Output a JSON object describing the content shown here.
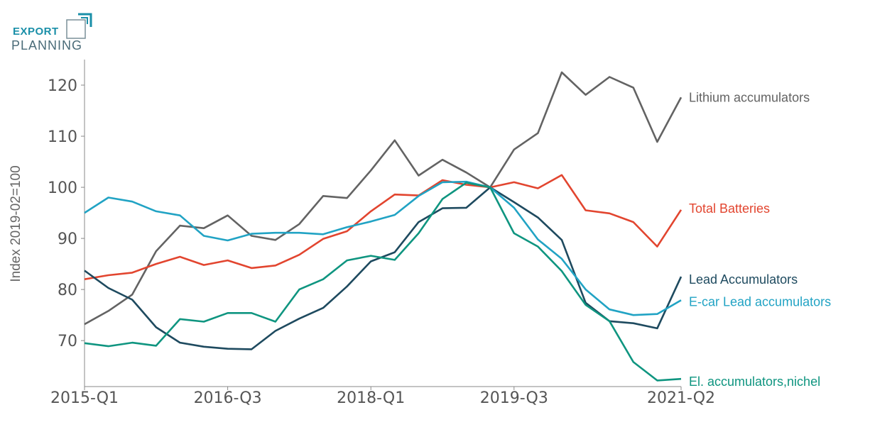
{
  "logo": {
    "line1": "EXPORT",
    "line2": "PLANNING",
    "color": "#1a8fa8"
  },
  "chart_data": {
    "type": "line",
    "title": "",
    "xlabel": "",
    "ylabel": "Index 2019-02=100",
    "ylim": [
      61,
      125
    ],
    "yticks": [
      70,
      80,
      90,
      100,
      110,
      120
    ],
    "xtick_labels": [
      {
        "index": 0,
        "label": "2015-Q1"
      },
      {
        "index": 6,
        "label": "2016-Q3"
      },
      {
        "index": 12,
        "label": "2018-Q1"
      },
      {
        "index": 18,
        "label": "2019-Q3"
      },
      {
        "index": 25,
        "label": "2021-Q2"
      }
    ],
    "n_points": 26,
    "grid": false,
    "legend": "inline-right",
    "series": [
      {
        "name": "Lithium accumulators",
        "color": "#636363",
        "values": [
          73.2,
          75.8,
          79.0,
          87.5,
          92.5,
          92.0,
          94.5,
          90.5,
          89.7,
          92.8,
          98.3,
          97.9,
          103.3,
          109.2,
          102.3,
          105.4,
          102.9,
          100.0,
          107.4,
          110.6,
          122.5,
          118.1,
          121.6,
          119.5,
          108.9,
          117.6
        ]
      },
      {
        "name": "Total Batteries",
        "color": "#e2452f",
        "values": [
          82.0,
          82.8,
          83.3,
          85.0,
          86.4,
          84.8,
          85.7,
          84.2,
          84.7,
          86.8,
          89.9,
          91.4,
          95.3,
          98.6,
          98.4,
          101.4,
          100.5,
          100.0,
          101.0,
          99.8,
          102.4,
          95.5,
          94.9,
          93.2,
          88.4,
          95.6
        ]
      },
      {
        "name": "Lead Accumulators",
        "color": "#1e4a5f",
        "values": [
          83.7,
          80.3,
          78.0,
          72.6,
          69.6,
          68.8,
          68.4,
          68.3,
          71.9,
          74.3,
          76.4,
          80.6,
          85.5,
          87.3,
          93.2,
          95.9,
          96.0,
          100.0,
          97.1,
          94.1,
          89.7,
          77.4,
          73.8,
          73.4,
          72.4,
          82.5
        ]
      },
      {
        "name": "E-car Lead accumulators",
        "color": "#21a3c4",
        "values": [
          95.0,
          98.0,
          97.2,
          95.3,
          94.5,
          90.5,
          89.6,
          90.9,
          91.1,
          91.1,
          90.8,
          92.2,
          93.3,
          94.6,
          98.3,
          101.0,
          101.1,
          100.0,
          96.0,
          89.8,
          86.0,
          80.0,
          76.1,
          75.0,
          75.2,
          77.9
        ]
      },
      {
        "name": "El. accumulators,nichel",
        "color": "#0f9580",
        "values": [
          69.5,
          68.9,
          69.6,
          69.0,
          74.2,
          73.7,
          75.4,
          75.4,
          73.7,
          80.0,
          82.0,
          85.7,
          86.6,
          85.8,
          91.0,
          97.7,
          100.9,
          100.0,
          91.0,
          88.4,
          83.6,
          77.0,
          73.8,
          65.8,
          62.2,
          62.5
        ]
      }
    ]
  }
}
